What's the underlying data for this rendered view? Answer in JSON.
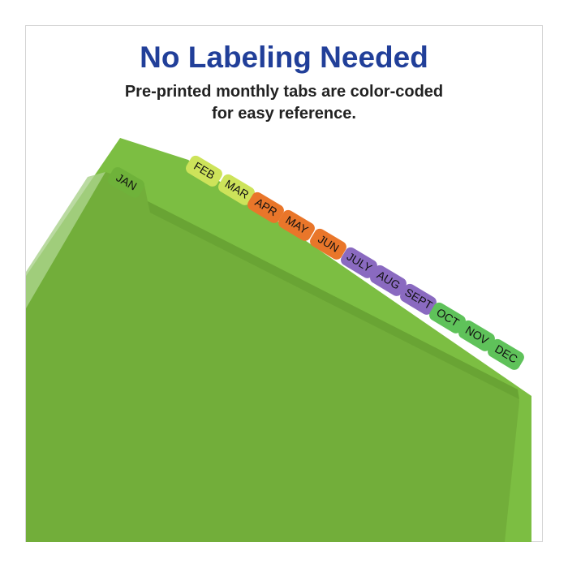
{
  "headline": "No Labeling Needed",
  "subheadline": [
    "Pre-printed monthly tabs are color-coded",
    "for easy reference."
  ],
  "tabs": [
    {
      "label": "JAN",
      "color": "#6fb23a"
    },
    {
      "label": "FEB",
      "color": "#cde35a"
    },
    {
      "label": "MAR",
      "color": "#cde35a"
    },
    {
      "label": "APR",
      "color": "#e9762a"
    },
    {
      "label": "MAY",
      "color": "#e9762a"
    },
    {
      "label": "JUN",
      "color": "#e9762a"
    },
    {
      "label": "JULY",
      "color": "#8a6ac0"
    },
    {
      "label": "AUG",
      "color": "#8a6ac0"
    },
    {
      "label": "SEPT",
      "color": "#8a6ac0"
    },
    {
      "label": "OCT",
      "color": "#5fc25a"
    },
    {
      "label": "NOV",
      "color": "#5fc25a"
    },
    {
      "label": "DEC",
      "color": "#5fc25a"
    }
  ],
  "colors": {
    "headline": "#213f99",
    "folder": "#72ae3a",
    "folder_back": "#7cbe42"
  }
}
